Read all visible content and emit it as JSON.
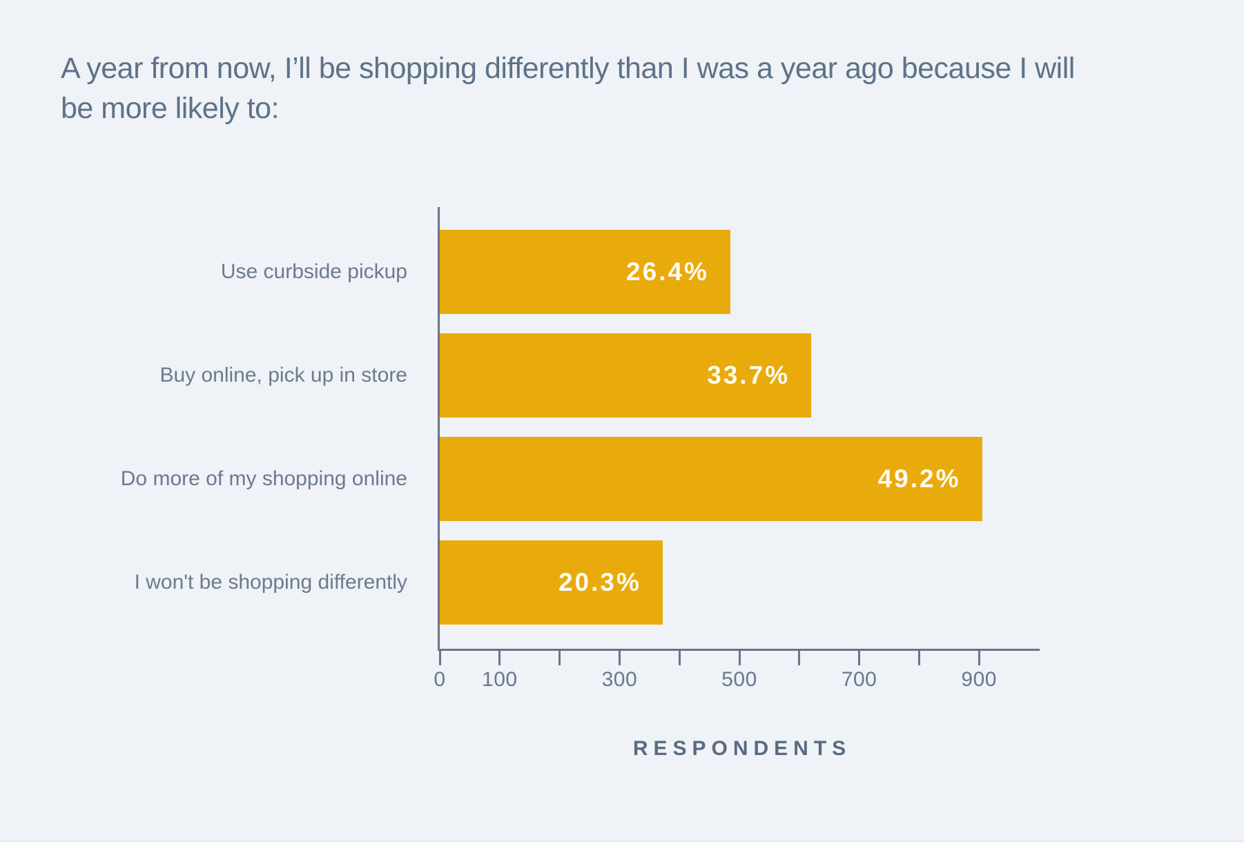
{
  "title": {
    "lines": [
      "A year from now, I’ll be shopping differently than I was a year ago because I will",
      "be more likely to:"
    ]
  },
  "chart_data": {
    "type": "bar",
    "orientation": "horizontal",
    "title": "A year from now, I’ll be shopping differently than I was a year ago because I will be more likely to:",
    "categories": [
      "Use curbside pickup",
      "Buy online, pick up in store",
      "Do more of my shopping online",
      "I won't be shopping differently"
    ],
    "values": [
      485,
      620,
      905,
      372
    ],
    "bar_labels": [
      "26.4%",
      "33.7%",
      "49.2%",
      "20.3%"
    ],
    "percentages": [
      26.4,
      33.7,
      49.2,
      20.3
    ],
    "xlabel": "RESPONDENTS",
    "xlim": [
      0,
      1000
    ],
    "xticks": [
      0,
      100,
      200,
      300,
      400,
      500,
      600,
      700,
      800,
      900
    ],
    "xtick_labels": [
      "0",
      "100",
      "300",
      "500",
      "700",
      "900"
    ],
    "xtick_label_values": [
      0,
      100,
      300,
      500,
      700,
      900
    ],
    "grid": false,
    "legend": "none"
  },
  "colors": {
    "background": "#eff2f6",
    "bar": "#e9aa0b",
    "bar_label": "#fdfbf2",
    "title_text": "#5d7289",
    "category_text": "#6b7a90",
    "tick_text": "#68788e",
    "axis_line": "#66758a",
    "xlabel_text": "#596b82"
  }
}
